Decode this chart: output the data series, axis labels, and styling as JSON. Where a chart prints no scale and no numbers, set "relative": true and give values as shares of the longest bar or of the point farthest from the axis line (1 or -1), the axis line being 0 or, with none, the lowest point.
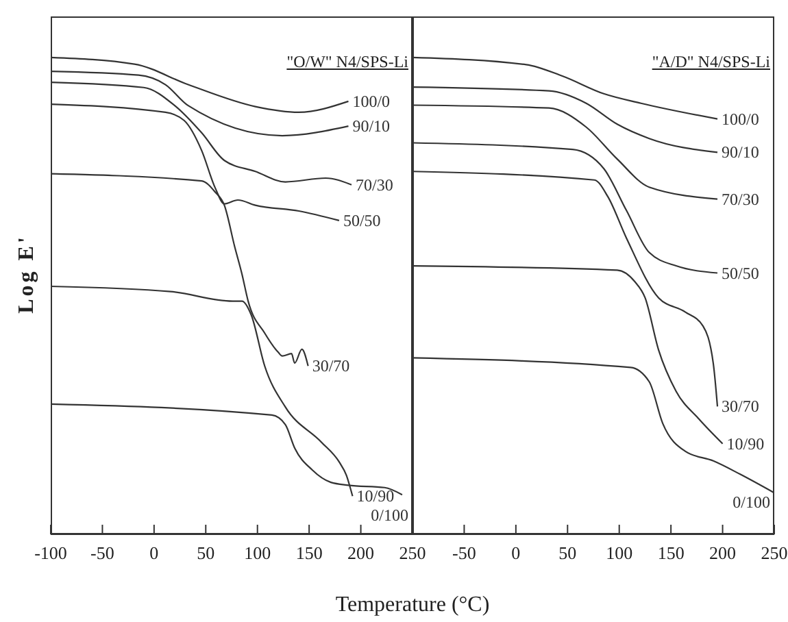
{
  "chart_data": [
    {
      "type": "line",
      "title": "\"O/W\" N4/SPS-Li",
      "xlabel": "Temperature (°C)",
      "ylabel": "Log E'",
      "relative": true,
      "marker": "none",
      "xlim": [
        -100,
        250
      ],
      "xticks": [
        -100,
        -50,
        0,
        50,
        100,
        150,
        200,
        250
      ],
      "series": [
        {
          "name": "100/0",
          "color": "#333333",
          "x": [
            -100,
            -19,
            33,
            98,
            140,
            188
          ],
          "values": [
            1.0,
            0.986,
            0.943,
            0.897,
            0.885,
            0.908
          ]
        },
        {
          "name": "90/10",
          "color": "#333333",
          "x": [
            -100,
            -15,
            11,
            33,
            124,
            188
          ],
          "values": [
            0.971,
            0.963,
            0.943,
            0.899,
            0.836,
            0.856
          ]
        },
        {
          "name": "70/30",
          "color": "#333333",
          "x": [
            -100,
            -10,
            20,
            46,
            68,
            98,
            127,
            166,
            191
          ],
          "values": [
            0.948,
            0.937,
            0.899,
            0.842,
            0.784,
            0.761,
            0.739,
            0.747,
            0.733
          ]
        },
        {
          "name": "50/50",
          "color": "#333333",
          "x": [
            -100,
            11,
            29,
            46,
            59,
            68,
            81,
            98,
            140,
            179
          ],
          "values": [
            0.902,
            0.885,
            0.868,
            0.805,
            0.727,
            0.693,
            0.701,
            0.69,
            0.678,
            0.658
          ]
        },
        {
          "name": "30/70",
          "color": "#333333",
          "x": [
            -100,
            46,
            59,
            68,
            78,
            85,
            91,
            107,
            120,
            124,
            133,
            136,
            143,
            149
          ],
          "values": [
            0.756,
            0.741,
            0.718,
            0.69,
            0.603,
            0.546,
            0.489,
            0.422,
            0.382,
            0.374,
            0.379,
            0.359,
            0.388,
            0.353
          ]
        },
        {
          "name": "10/90",
          "color": "#333333",
          "x": [
            -100,
            16,
            76,
            85,
            94,
            107,
            127,
            162,
            179,
            186,
            192
          ],
          "values": [
            0.52,
            0.509,
            0.489,
            0.489,
            0.46,
            0.353,
            0.267,
            0.193,
            0.152,
            0.124,
            0.08
          ]
        },
        {
          "name": "0/100",
          "color": "#333333",
          "x": [
            -100,
            114,
            127,
            136,
            153,
            171,
            188,
            223,
            240
          ],
          "values": [
            0.273,
            0.25,
            0.23,
            0.181,
            0.135,
            0.109,
            0.103,
            0.098,
            0.083
          ]
        }
      ]
    },
    {
      "type": "line",
      "title": "\"A/D\" N4/SPS-Li",
      "relative": true,
      "marker": "none",
      "xlim": [
        -100,
        250
      ],
      "xticks": [
        -50,
        0,
        50,
        100,
        150,
        200,
        250
      ],
      "series": [
        {
          "name": "100/0",
          "color": "#333333",
          "x": [
            -100,
            10,
            45,
            85,
            121,
            195
          ],
          "values": [
            1.0,
            0.985,
            0.961,
            0.924,
            0.904,
            0.871
          ]
        },
        {
          "name": "90/10",
          "color": "#333333",
          "x": [
            -100,
            32,
            68,
            98,
            129,
            195
          ],
          "values": [
            0.938,
            0.93,
            0.904,
            0.86,
            0.83,
            0.801
          ]
        },
        {
          "name": "70/30",
          "color": "#333333",
          "x": [
            -100,
            32,
            68,
            98,
            129,
            195
          ],
          "values": [
            0.9,
            0.894,
            0.854,
            0.787,
            0.728,
            0.703
          ]
        },
        {
          "name": "50/50",
          "color": "#333333",
          "x": [
            -100,
            55,
            85,
            107,
            129,
            155,
            195
          ],
          "values": [
            0.821,
            0.807,
            0.767,
            0.679,
            0.591,
            0.563,
            0.548
          ]
        },
        {
          "name": "30/70",
          "color": "#333333",
          "x": [
            -100,
            76,
            89,
            107,
            138,
            164,
            181,
            191,
            195
          ],
          "values": [
            0.761,
            0.743,
            0.708,
            0.621,
            0.496,
            0.466,
            0.437,
            0.358,
            0.268
          ]
        },
        {
          "name": "10/90",
          "color": "#333333",
          "x": [
            -100,
            98,
            115,
            125,
            138,
            155,
            177,
            200
          ],
          "values": [
            0.563,
            0.554,
            0.53,
            0.496,
            0.387,
            0.3,
            0.242,
            0.19
          ]
        },
        {
          "name": "0/100",
          "color": "#333333",
          "x": [
            -100,
            111,
            129,
            142,
            164,
            191,
            217,
            250
          ],
          "values": [
            0.37,
            0.35,
            0.32,
            0.233,
            0.174,
            0.154,
            0.126,
            0.087
          ]
        }
      ]
    }
  ]
}
